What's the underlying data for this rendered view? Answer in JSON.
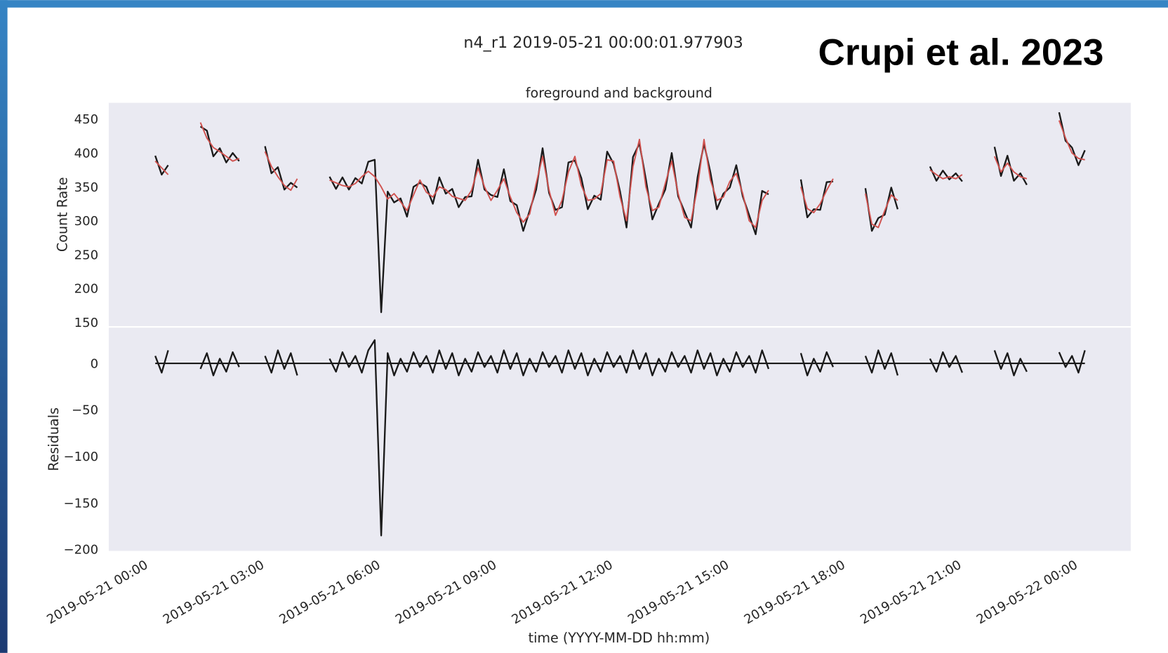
{
  "title": "n4_r1 2019-05-21 00:00:01.977903",
  "annotation": "Crupi et al. 2023",
  "chart_data": [
    {
      "type": "line",
      "title": "foreground and background",
      "ylabel": "Count Rate",
      "x": [
        "2019-05-21 00:10",
        "2019-05-21 00:20",
        "2019-05-21 00:30",
        "2019-05-21 00:40",
        "2019-05-21 00:50",
        "2019-05-21 01:00",
        "2019-05-21 01:10",
        "2019-05-21 01:20",
        "2019-05-21 01:30",
        "2019-05-21 01:40",
        "2019-05-21 01:50",
        "2019-05-21 02:00",
        "2019-05-21 02:10",
        "2019-05-21 02:20",
        "2019-05-21 02:30",
        "2019-05-21 02:40",
        "2019-05-21 02:50",
        "2019-05-21 03:00",
        "2019-05-21 03:10",
        "2019-05-21 03:20",
        "2019-05-21 03:30",
        "2019-05-21 03:40",
        "2019-05-21 03:50",
        "2019-05-21 04:00",
        "2019-05-21 04:10",
        "2019-05-21 04:20",
        "2019-05-21 04:30",
        "2019-05-21 04:40",
        "2019-05-21 04:50",
        "2019-05-21 05:00",
        "2019-05-21 05:10",
        "2019-05-21 05:20",
        "2019-05-21 05:30",
        "2019-05-21 05:40",
        "2019-05-21 05:50",
        "2019-05-21 06:00",
        "2019-05-21 06:10",
        "2019-05-21 06:20",
        "2019-05-21 06:30",
        "2019-05-21 06:40",
        "2019-05-21 06:50",
        "2019-05-21 07:00",
        "2019-05-21 07:10",
        "2019-05-21 07:20",
        "2019-05-21 07:30",
        "2019-05-21 07:40",
        "2019-05-21 07:50",
        "2019-05-21 08:00",
        "2019-05-21 08:10",
        "2019-05-21 08:20",
        "2019-05-21 08:30",
        "2019-05-21 08:40",
        "2019-05-21 08:50",
        "2019-05-21 09:00",
        "2019-05-21 09:10",
        "2019-05-21 09:20",
        "2019-05-21 09:30",
        "2019-05-21 09:40",
        "2019-05-21 09:50",
        "2019-05-21 10:00",
        "2019-05-21 10:10",
        "2019-05-21 10:20",
        "2019-05-21 10:30",
        "2019-05-21 10:40",
        "2019-05-21 10:50",
        "2019-05-21 11:00",
        "2019-05-21 11:10",
        "2019-05-21 11:20",
        "2019-05-21 11:30",
        "2019-05-21 11:40",
        "2019-05-21 11:50",
        "2019-05-21 12:00",
        "2019-05-21 12:10",
        "2019-05-21 12:20",
        "2019-05-21 12:30",
        "2019-05-21 12:40",
        "2019-05-21 12:50",
        "2019-05-21 13:00",
        "2019-05-21 13:10",
        "2019-05-21 13:20",
        "2019-05-21 13:30",
        "2019-05-21 13:40",
        "2019-05-21 13:50",
        "2019-05-21 14:00",
        "2019-05-21 14:10",
        "2019-05-21 14:20",
        "2019-05-21 14:30",
        "2019-05-21 14:40",
        "2019-05-21 14:50",
        "2019-05-21 15:00",
        "2019-05-21 15:10",
        "2019-05-21 15:20",
        "2019-05-21 15:30",
        "2019-05-21 15:40",
        "2019-05-21 15:50",
        "2019-05-21 16:00",
        "2019-05-21 16:10",
        "2019-05-21 16:20",
        "2019-05-21 16:30",
        "2019-05-21 16:40",
        "2019-05-21 16:50",
        "2019-05-21 17:00",
        "2019-05-21 17:10",
        "2019-05-21 17:20",
        "2019-05-21 17:30",
        "2019-05-21 17:40",
        "2019-05-21 17:50",
        "2019-05-21 18:00",
        "2019-05-21 18:10",
        "2019-05-21 18:20",
        "2019-05-21 18:30",
        "2019-05-21 18:40",
        "2019-05-21 18:50",
        "2019-05-21 19:00",
        "2019-05-21 19:10",
        "2019-05-21 19:20",
        "2019-05-21 19:30",
        "2019-05-21 19:40",
        "2019-05-21 19:50",
        "2019-05-21 20:00",
        "2019-05-21 20:10",
        "2019-05-21 20:20",
        "2019-05-21 20:30",
        "2019-05-21 20:40",
        "2019-05-21 20:50",
        "2019-05-21 21:00",
        "2019-05-21 21:10",
        "2019-05-21 21:20",
        "2019-05-21 21:30",
        "2019-05-21 21:40",
        "2019-05-21 21:50",
        "2019-05-21 22:00",
        "2019-05-21 22:10",
        "2019-05-21 22:20",
        "2019-05-21 22:30",
        "2019-05-21 22:40",
        "2019-05-21 22:50",
        "2019-05-21 23:00",
        "2019-05-21 23:10",
        "2019-05-21 23:20",
        "2019-05-21 23:30",
        "2019-05-21 23:40",
        "2019-05-21 23:50",
        "2019-05-22 00:00",
        "2019-05-22 00:10"
      ],
      "series": [
        {
          "color": "#1a1a1a",
          "values": [
            396,
            368,
            382,
            null,
            null,
            null,
            null,
            439,
            433,
            395,
            407,
            386,
            400,
            388,
            null,
            null,
            null,
            410,
            370,
            379,
            346,
            356,
            349,
            null,
            null,
            null,
            null,
            365,
            347,
            364,
            346,
            363,
            355,
            387,
            390,
            165,
            343,
            327,
            333,
            306,
            350,
            356,
            350,
            325,
            364,
            340,
            347,
            320,
            335,
            336,
            390,
            346,
            338,
            335,
            376,
            329,
            323,
            285,
            315,
            346,
            407,
            341,
            316,
            320,
            386,
            389,
            363,
            317,
            337,
            331,
            402,
            384,
            343,
            290,
            394,
            414,
            361,
            302,
            325,
            346,
            400,
            336,
            313,
            290,
            364,
            414,
            371,
            317,
            340,
            349,
            382,
            336,
            308,
            280,
            344,
            339,
            null,
            null,
            null,
            null,
            361,
            305,
            317,
            316,
            357,
            358,
            null,
            null,
            null,
            null,
            348,
            285,
            304,
            309,
            349,
            317,
            null,
            null,
            null,
            null,
            380,
            359,
            374,
            361,
            370,
            358,
            null,
            null,
            null,
            null,
            409,
            366,
            396,
            359,
            370,
            353,
            null,
            null,
            null,
            null,
            460,
            418,
            408,
            382,
            404
          ]
        },
        {
          "color": "#d0524f",
          "values": [
            388,
            378,
            368,
            null,
            null,
            null,
            null,
            445,
            422,
            408,
            402,
            395,
            388,
            392,
            null,
            null,
            null,
            402,
            380,
            365,
            352,
            345,
            362,
            null,
            null,
            null,
            null,
            360,
            356,
            352,
            350,
            355,
            365,
            373,
            365,
            350,
            332,
            340,
            328,
            315,
            338,
            360,
            342,
            335,
            350,
            346,
            336,
            333,
            330,
            345,
            378,
            350,
            330,
            345,
            362,
            335,
            312,
            298,
            310,
            355,
            395,
            345,
            308,
            330,
            372,
            395,
            352,
            330,
            332,
            340,
            390,
            388,
            335,
            300,
            380,
            420,
            350,
            315,
            320,
            355,
            388,
            340,
            305,
            300,
            350,
            420,
            360,
            330,
            335,
            358,
            370,
            340,
            300,
            290,
            330,
            345,
            null,
            null,
            null,
            null,
            350,
            318,
            312,
            325,
            345,
            362,
            null,
            null,
            null,
            null,
            340,
            295,
            290,
            315,
            338,
            330,
            null,
            null,
            null,
            null,
            375,
            368,
            362,
            365,
            362,
            368,
            null,
            null,
            null,
            null,
            395,
            372,
            385,
            372,
            365,
            362,
            null,
            null,
            null,
            null,
            448,
            422,
            400,
            392,
            390
          ]
        }
      ],
      "ylim": [
        144.5,
        474
      ],
      "yticks": [
        150,
        200,
        250,
        300,
        350,
        400,
        450
      ]
    },
    {
      "type": "line",
      "ylabel": "Residuals",
      "xlabel": "time (YYYY-MM-DD hh:mm)",
      "series": [
        {
          "color": "#1a1a1a",
          "values": [
            8,
            -10,
            14,
            null,
            null,
            null,
            null,
            -6,
            11,
            -13,
            5,
            -9,
            12,
            -4,
            null,
            null,
            null,
            8,
            -10,
            14,
            -6,
            11,
            -13,
            null,
            null,
            null,
            null,
            5,
            -9,
            12,
            -4,
            8,
            -10,
            14,
            25,
            -185,
            11,
            -13,
            5,
            -9,
            12,
            -4,
            8,
            -10,
            14,
            -6,
            11,
            -13,
            5,
            -9,
            12,
            -4,
            8,
            -10,
            14,
            -6,
            11,
            -13,
            5,
            -9,
            12,
            -4,
            8,
            -10,
            14,
            -6,
            11,
            -13,
            5,
            -9,
            12,
            -4,
            8,
            -10,
            14,
            -6,
            11,
            -13,
            5,
            -9,
            12,
            -4,
            8,
            -10,
            14,
            -6,
            11,
            -13,
            5,
            -9,
            12,
            -4,
            8,
            -10,
            14,
            -6,
            null,
            null,
            null,
            null,
            11,
            -13,
            5,
            -9,
            12,
            -4,
            null,
            null,
            null,
            null,
            8,
            -10,
            14,
            -6,
            11,
            -13,
            null,
            null,
            null,
            null,
            5,
            -9,
            12,
            -4,
            8,
            -10,
            null,
            null,
            null,
            null,
            14,
            -6,
            11,
            -13,
            5,
            -9,
            null,
            null,
            null,
            null,
            12,
            -4,
            8,
            -10,
            14
          ]
        }
      ],
      "ylim": [
        -201.6,
        38.4
      ],
      "yticks": [
        {
          "value": -200,
          "label": "−200"
        },
        {
          "value": -150,
          "label": "−150"
        },
        {
          "value": -100,
          "label": "−100"
        },
        {
          "value": -50,
          "label": "−50"
        },
        0
      ],
      "xlim": [
        "2019-05-20 22:58",
        "2019-05-22 01:21"
      ],
      "xticks": [
        "2019-05-21 00:00",
        "2019-05-21 03:00",
        "2019-05-21 06:00",
        "2019-05-21 09:00",
        "2019-05-21 12:00",
        "2019-05-21 15:00",
        "2019-05-21 18:00",
        "2019-05-21 21:00",
        "2019-05-22 00:00"
      ]
    }
  ]
}
